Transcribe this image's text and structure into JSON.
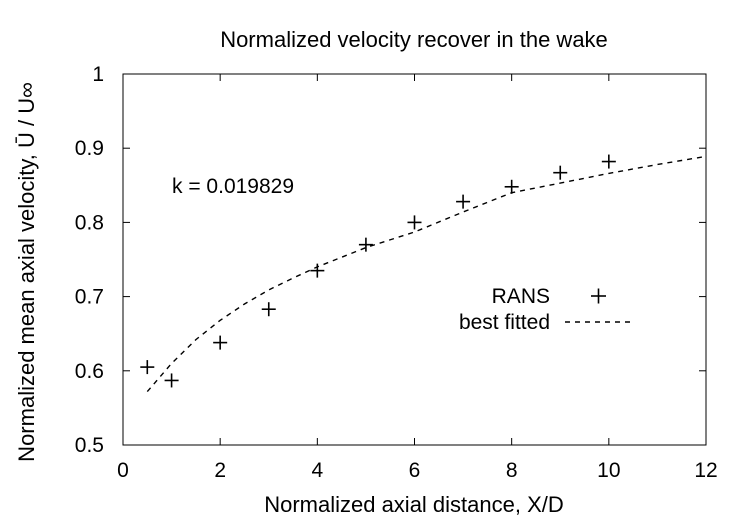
{
  "chart_data": {
    "type": "scatter",
    "title": "Normalized velocity recover in the wake",
    "xlabel": "Normalized axial distance, X/D",
    "ylabel": "Normalized mean axial velocity, Ū / U∞",
    "xlim": [
      0,
      12
    ],
    "ylim": [
      0.5,
      1
    ],
    "x_ticks": [
      0,
      2,
      4,
      6,
      8,
      10,
      12
    ],
    "x_tick_labels": [
      "0",
      "2",
      "4",
      "6",
      "8",
      "10",
      "12"
    ],
    "y_ticks": [
      0.5,
      0.6,
      0.7,
      0.8,
      0.9,
      1.0
    ],
    "y_tick_labels": [
      "0.5",
      "0.6",
      "0.7",
      "0.8",
      "0.9",
      "1"
    ],
    "grid": false,
    "legend_position": "right-center",
    "annotation": "k = 0.019829",
    "series": [
      {
        "name": "RANS",
        "style": "plus-markers",
        "color": "#000000",
        "x": [
          0.5,
          1,
          2,
          3,
          4,
          5,
          6,
          7,
          8,
          9,
          10
        ],
        "y": [
          0.605,
          0.587,
          0.638,
          0.683,
          0.735,
          0.77,
          0.8,
          0.828,
          0.848,
          0.867,
          0.882
        ]
      },
      {
        "name": "best fitted",
        "style": "dashed-line",
        "color": "#000000",
        "x": [
          0.5,
          1,
          1.5,
          2,
          2.5,
          3,
          3.5,
          4,
          5,
          6,
          7,
          8,
          9,
          10,
          11,
          12
        ],
        "y": [
          0.572,
          0.61,
          0.642,
          0.668,
          0.69,
          0.709,
          0.725,
          0.74,
          0.766,
          0.787,
          0.814,
          0.84,
          0.853,
          0.866,
          0.878,
          0.889
        ]
      }
    ]
  }
}
